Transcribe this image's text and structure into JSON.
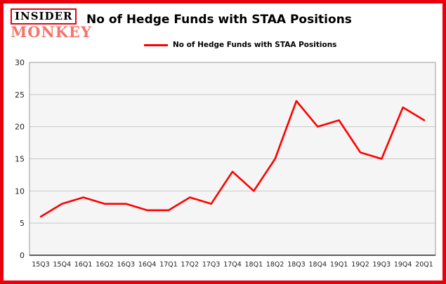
{
  "brand": {
    "line1": "INSIDER",
    "line2": "MONKEY"
  },
  "title": "No of Hedge Funds with STAA Positions",
  "legend": {
    "label": "No of Hedge Funds with STAA Positions"
  },
  "colors": {
    "frame": "#e8000d",
    "line": "#fe0000",
    "monkey": "#f4756b",
    "plot_bg": "#f5f5f5",
    "gridline": "#c8c8c8",
    "axis": "#000000"
  },
  "chart_data": {
    "type": "line",
    "title": "No of Hedge Funds with STAA Positions",
    "categories": [
      "15Q3",
      "15Q4",
      "16Q1",
      "16Q2",
      "16Q3",
      "16Q4",
      "17Q1",
      "17Q2",
      "17Q3",
      "17Q4",
      "18Q1",
      "18Q2",
      "18Q3",
      "18Q4",
      "19Q1",
      "19Q2",
      "19Q3",
      "19Q4",
      "20Q1"
    ],
    "values": [
      6,
      8,
      9,
      8,
      8,
      7,
      7,
      9,
      8,
      13,
      10,
      15,
      24,
      20,
      21,
      16,
      15,
      23,
      21
    ],
    "xlabel": "",
    "ylabel": "",
    "ylim": [
      0,
      30
    ],
    "yticks": [
      0,
      5,
      10,
      15,
      20,
      25,
      30
    ],
    "grid": true,
    "legend_position": "top-left",
    "series_color": "#fe0000"
  }
}
